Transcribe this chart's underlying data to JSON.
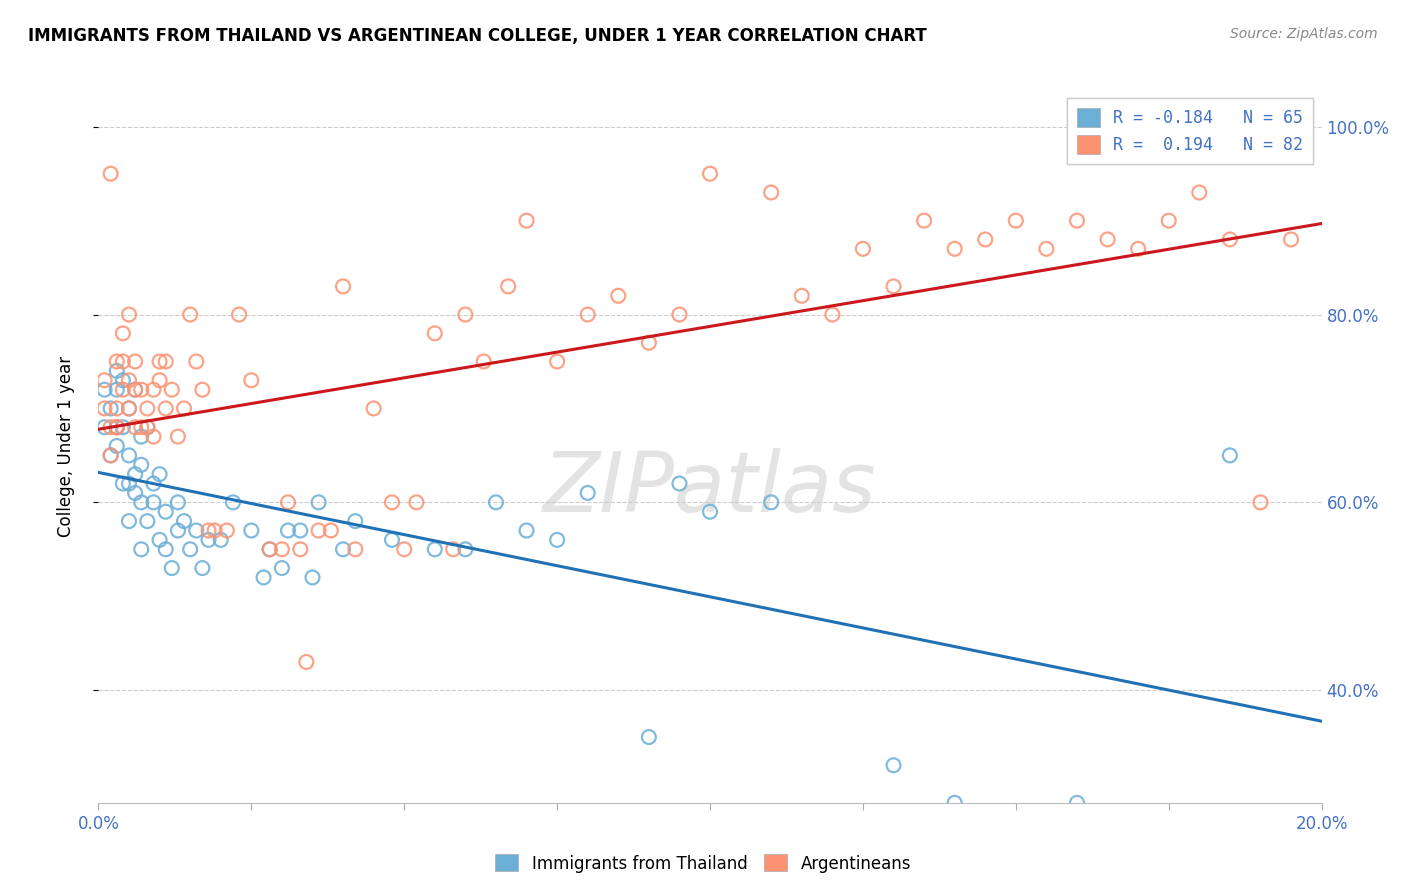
{
  "title": "IMMIGRANTS FROM THAILAND VS ARGENTINEAN COLLEGE, UNDER 1 YEAR CORRELATION CHART",
  "source": "Source: ZipAtlas.com",
  "ylabel": "College, Under 1 year",
  "legend_label1": "Immigrants from Thailand",
  "legend_label2": "Argentineans",
  "R1": -0.184,
  "N1": 65,
  "R2": 0.194,
  "N2": 82,
  "blue_color": "#6baed6",
  "pink_color": "#fc9272",
  "blue_line_color": "#2171b5",
  "pink_line_color": "#cb181d",
  "background_color": "#ffffff",
  "watermark": "ZIPatlas",
  "xlim": [
    0.0,
    0.2
  ],
  "ylim": [
    0.28,
    1.04
  ],
  "yticks": [
    0.4,
    0.6,
    0.8,
    1.0
  ],
  "ytick_labels": [
    "40.0%",
    "60.0%",
    "80.0%",
    "100.0%"
  ],
  "blue_x": [
    0.001,
    0.001,
    0.002,
    0.002,
    0.003,
    0.003,
    0.003,
    0.003,
    0.004,
    0.004,
    0.004,
    0.005,
    0.005,
    0.005,
    0.005,
    0.006,
    0.006,
    0.006,
    0.007,
    0.007,
    0.007,
    0.007,
    0.008,
    0.008,
    0.009,
    0.009,
    0.01,
    0.01,
    0.011,
    0.011,
    0.012,
    0.013,
    0.013,
    0.014,
    0.015,
    0.016,
    0.017,
    0.018,
    0.02,
    0.022,
    0.025,
    0.027,
    0.028,
    0.03,
    0.031,
    0.033,
    0.035,
    0.036,
    0.04,
    0.042,
    0.048,
    0.055,
    0.06,
    0.065,
    0.07,
    0.075,
    0.08,
    0.09,
    0.095,
    0.1,
    0.11,
    0.13,
    0.14,
    0.16,
    0.185
  ],
  "blue_y": [
    0.68,
    0.72,
    0.65,
    0.7,
    0.74,
    0.68,
    0.72,
    0.66,
    0.73,
    0.68,
    0.62,
    0.65,
    0.58,
    0.7,
    0.62,
    0.61,
    0.63,
    0.72,
    0.6,
    0.67,
    0.64,
    0.55,
    0.58,
    0.68,
    0.62,
    0.6,
    0.56,
    0.63,
    0.55,
    0.59,
    0.53,
    0.6,
    0.57,
    0.58,
    0.55,
    0.57,
    0.53,
    0.56,
    0.56,
    0.6,
    0.57,
    0.52,
    0.55,
    0.53,
    0.57,
    0.57,
    0.52,
    0.6,
    0.55,
    0.58,
    0.56,
    0.55,
    0.55,
    0.6,
    0.57,
    0.56,
    0.61,
    0.35,
    0.62,
    0.59,
    0.6,
    0.32,
    0.28,
    0.28,
    0.65
  ],
  "pink_x": [
    0.001,
    0.001,
    0.002,
    0.002,
    0.002,
    0.003,
    0.003,
    0.003,
    0.003,
    0.004,
    0.004,
    0.004,
    0.005,
    0.005,
    0.005,
    0.006,
    0.006,
    0.006,
    0.007,
    0.007,
    0.008,
    0.008,
    0.009,
    0.009,
    0.01,
    0.01,
    0.011,
    0.011,
    0.012,
    0.013,
    0.014,
    0.015,
    0.016,
    0.017,
    0.018,
    0.019,
    0.021,
    0.023,
    0.025,
    0.028,
    0.03,
    0.031,
    0.033,
    0.034,
    0.036,
    0.038,
    0.04,
    0.042,
    0.045,
    0.048,
    0.05,
    0.052,
    0.055,
    0.058,
    0.06,
    0.063,
    0.067,
    0.07,
    0.075,
    0.08,
    0.085,
    0.09,
    0.095,
    0.1,
    0.11,
    0.115,
    0.12,
    0.125,
    0.13,
    0.135,
    0.14,
    0.145,
    0.15,
    0.155,
    0.16,
    0.165,
    0.17,
    0.175,
    0.18,
    0.185,
    0.19,
    0.195
  ],
  "pink_y": [
    0.7,
    0.73,
    0.68,
    0.65,
    0.95,
    0.68,
    0.7,
    0.68,
    0.75,
    0.72,
    0.75,
    0.78,
    0.7,
    0.73,
    0.8,
    0.68,
    0.72,
    0.75,
    0.68,
    0.72,
    0.7,
    0.68,
    0.72,
    0.67,
    0.75,
    0.73,
    0.75,
    0.7,
    0.72,
    0.67,
    0.7,
    0.8,
    0.75,
    0.72,
    0.57,
    0.57,
    0.57,
    0.8,
    0.73,
    0.55,
    0.55,
    0.6,
    0.55,
    0.43,
    0.57,
    0.57,
    0.83,
    0.55,
    0.7,
    0.6,
    0.55,
    0.6,
    0.78,
    0.55,
    0.8,
    0.75,
    0.83,
    0.9,
    0.75,
    0.8,
    0.82,
    0.77,
    0.8,
    0.95,
    0.93,
    0.82,
    0.8,
    0.87,
    0.83,
    0.9,
    0.87,
    0.88,
    0.9,
    0.87,
    0.9,
    0.88,
    0.87,
    0.9,
    0.93,
    0.88,
    0.6,
    0.88
  ]
}
